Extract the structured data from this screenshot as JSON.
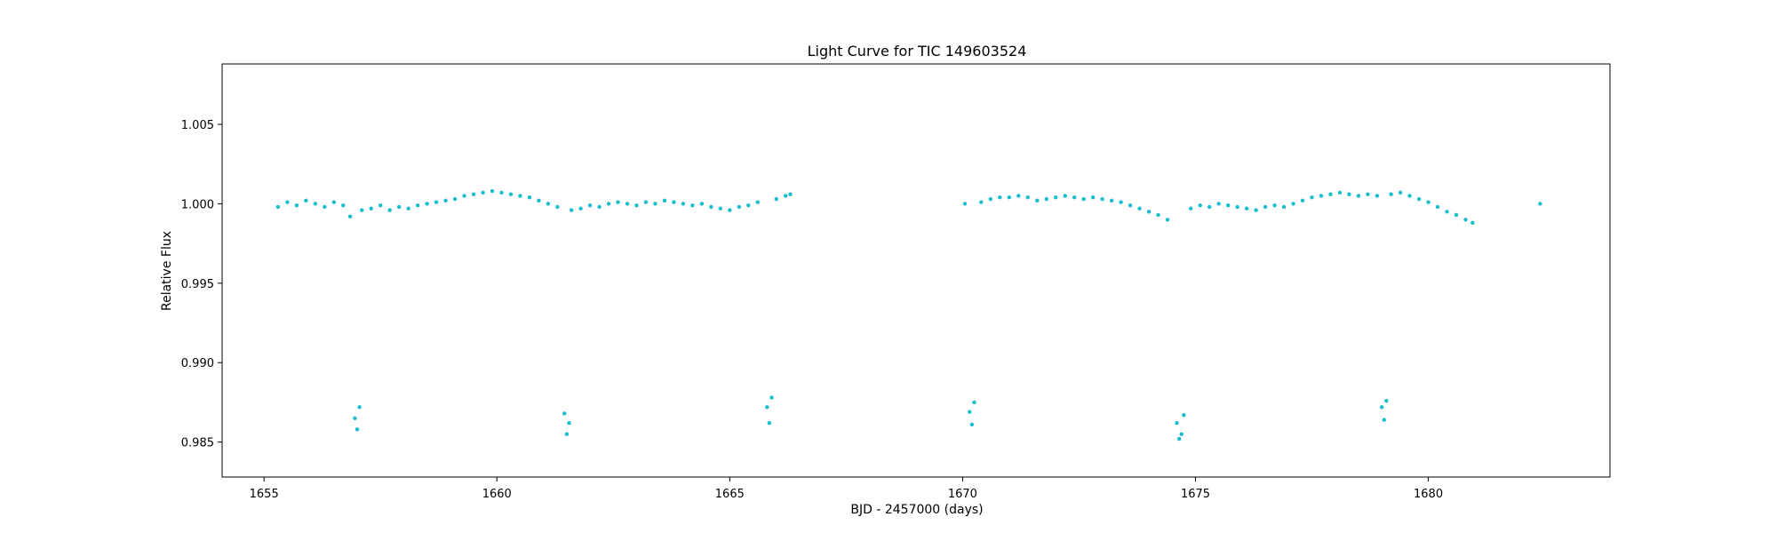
{
  "chart_data": {
    "type": "scatter",
    "title": "Light Curve for TIC 149603524",
    "xlabel": "BJD - 2457000 (days)",
    "ylabel": "Relative Flux",
    "xlim": [
      1654.1,
      1683.9
    ],
    "ylim": [
      0.9828,
      1.0088
    ],
    "xticks": [
      1655,
      1660,
      1665,
      1670,
      1675,
      1680
    ],
    "xtick_labels": [
      "1655",
      "1660",
      "1665",
      "1670",
      "1675",
      "1680"
    ],
    "yticks": [
      0.985,
      0.99,
      0.995,
      1.0,
      1.005
    ],
    "ytick_labels": [
      "0.985",
      "0.990",
      "0.995",
      "1.000",
      "1.005"
    ],
    "grid": false,
    "point_color": "#17becf",
    "series": [
      {
        "x": [
          1655.3,
          1655.5,
          1655.7,
          1655.9,
          1656.1,
          1656.3,
          1656.5,
          1656.7,
          1656.85,
          1656.95,
          1657.0,
          1657.05,
          1657.1,
          1657.3,
          1657.5,
          1657.7,
          1657.9,
          1658.1,
          1658.3,
          1658.5,
          1658.7,
          1658.9,
          1659.1,
          1659.3,
          1659.5,
          1659.7,
          1659.9,
          1660.1,
          1660.3,
          1660.5,
          1660.7,
          1660.9,
          1661.1,
          1661.3,
          1661.45,
          1661.5,
          1661.55,
          1661.6,
          1661.8,
          1662.0,
          1662.2,
          1662.4,
          1662.6,
          1662.8,
          1663.0,
          1663.2,
          1663.4,
          1663.6,
          1663.8,
          1664.0,
          1664.2,
          1664.4,
          1664.6,
          1664.8,
          1665.0,
          1665.2,
          1665.4,
          1665.6,
          1665.8,
          1665.85,
          1665.9,
          1666.0,
          1666.2,
          1666.3,
          1670.05,
          1670.15,
          1670.2,
          1670.25,
          1670.4,
          1670.6,
          1670.8,
          1671.0,
          1671.2,
          1671.4,
          1671.6,
          1671.8,
          1672.0,
          1672.2,
          1672.4,
          1672.6,
          1672.8,
          1673.0,
          1673.2,
          1673.4,
          1673.6,
          1673.8,
          1674.0,
          1674.2,
          1674.4,
          1674.6,
          1674.65,
          1674.7,
          1674.75,
          1674.9,
          1675.1,
          1675.3,
          1675.5,
          1675.7,
          1675.9,
          1676.1,
          1676.3,
          1676.5,
          1676.7,
          1676.9,
          1677.1,
          1677.3,
          1677.5,
          1677.7,
          1677.9,
          1678.1,
          1678.3,
          1678.5,
          1678.7,
          1678.9,
          1679.0,
          1679.05,
          1679.1,
          1679.2,
          1679.4,
          1679.6,
          1679.8,
          1680.0,
          1680.2,
          1680.4,
          1680.6,
          1680.8,
          1680.95,
          1682.4
        ],
        "y": [
          0.9998,
          1.0001,
          0.9999,
          1.0002,
          1.0,
          0.9998,
          1.0001,
          0.9999,
          0.9992,
          0.9865,
          0.9858,
          0.9872,
          0.9996,
          0.9997,
          0.9999,
          0.9996,
          0.9998,
          0.9997,
          0.9999,
          1.0,
          1.0001,
          1.0002,
          1.0003,
          1.0005,
          1.0006,
          1.0007,
          1.0008,
          1.0007,
          1.0006,
          1.0005,
          1.0004,
          1.0002,
          1.0,
          0.9998,
          0.9868,
          0.9855,
          0.9862,
          0.9996,
          0.9997,
          0.9999,
          0.9998,
          1.0,
          1.0001,
          1.0,
          0.9999,
          1.0001,
          1.0,
          1.0002,
          1.0001,
          1.0,
          0.9999,
          1.0,
          0.9998,
          0.9997,
          0.9996,
          0.9998,
          0.9999,
          1.0001,
          0.9872,
          0.9862,
          0.9878,
          1.0003,
          1.0005,
          1.0006,
          1.0,
          0.9869,
          0.9861,
          0.9875,
          1.0001,
          1.0003,
          1.0004,
          1.0004,
          1.0005,
          1.0004,
          1.0002,
          1.0003,
          1.0004,
          1.0005,
          1.0004,
          1.0003,
          1.0004,
          1.0003,
          1.0002,
          1.0001,
          0.9999,
          0.9997,
          0.9995,
          0.9993,
          0.999,
          0.9862,
          0.9852,
          0.9855,
          0.9867,
          0.9997,
          0.9999,
          0.9998,
          1.0,
          0.9999,
          0.9998,
          0.9997,
          0.9996,
          0.9998,
          0.9999,
          0.9998,
          1.0,
          1.0002,
          1.0004,
          1.0005,
          1.0006,
          1.0007,
          1.0006,
          1.0005,
          1.0006,
          1.0005,
          0.9872,
          0.9864,
          0.9876,
          1.0006,
          1.0007,
          1.0005,
          1.0003,
          1.0001,
          0.9998,
          0.9995,
          0.9993,
          0.999,
          0.9988,
          1.0
        ]
      }
    ]
  }
}
